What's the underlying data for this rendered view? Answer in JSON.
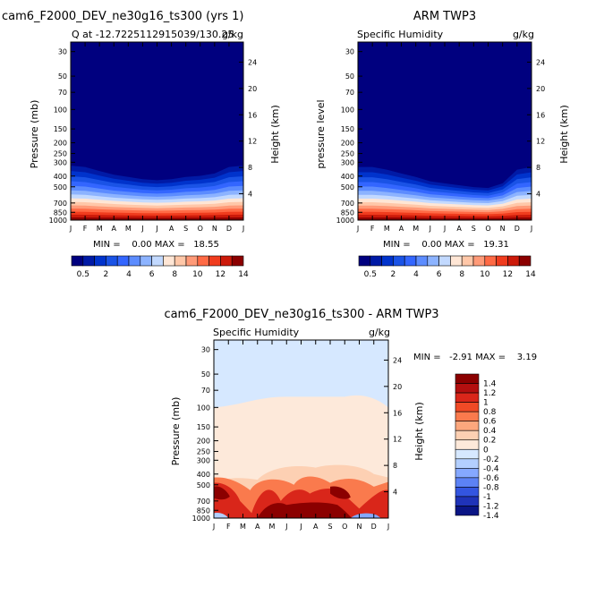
{
  "chart_data": [
    {
      "type": "heatmap",
      "title_left": "cam6_F2000_DEV_ne30g16_ts300 (yrs 1)",
      "subtitle": "Q at -12.7225112915039/130.25",
      "units": "g/kg",
      "ylabel": "Pressure (mb)",
      "ylabel_right": "Height (km)",
      "minmax": "MIN =    0.00 MAX =   18.55",
      "x_ticks": [
        "J",
        "F",
        "M",
        "A",
        "M",
        "J",
        "J",
        "A",
        "S",
        "O",
        "N",
        "D",
        "J"
      ],
      "p_ticks": [
        "30",
        "50",
        "70",
        "100",
        "150",
        "200",
        "250",
        "300",
        "400",
        "500",
        "700",
        "850",
        "1000"
      ],
      "km_ticks": [
        "24",
        "20",
        "16",
        "12",
        "8",
        "4"
      ],
      "moist_top_p": [
        290,
        300,
        330,
        360,
        380,
        400,
        410,
        400,
        380,
        370,
        350,
        300,
        290
      ],
      "colorbar_labels": [
        "0.5",
        "2",
        "4",
        "6",
        "8",
        "10",
        "12",
        "14"
      ]
    },
    {
      "type": "heatmap",
      "title_right": "ARM TWP3",
      "subtitle": "Specific Humidity",
      "units": "g/kg",
      "ylabel": "pressure level",
      "ylabel_right": "Height (km)",
      "minmax": "MIN =    0.00 MAX =   19.31",
      "x_ticks": [
        "J",
        "F",
        "M",
        "A",
        "M",
        "J",
        "J",
        "A",
        "S",
        "O",
        "N",
        "D",
        "J"
      ],
      "p_ticks": [
        "30",
        "50",
        "70",
        "100",
        "150",
        "200",
        "250",
        "300",
        "400",
        "500",
        "700",
        "850",
        "1000"
      ],
      "km_ticks": [
        "24",
        "20",
        "16",
        "12",
        "8",
        "4"
      ],
      "moist_top_p": [
        300,
        300,
        320,
        350,
        380,
        420,
        440,
        460,
        480,
        490,
        440,
        320,
        300
      ],
      "colorbar_labels": [
        "0.5",
        "2",
        "4",
        "6",
        "8",
        "10",
        "12",
        "14"
      ]
    },
    {
      "type": "heatmap",
      "title": "cam6_F2000_DEV_ne30g16_ts300 - ARM TWP3",
      "subtitle": "Specific Humidity",
      "units": "g/kg",
      "ylabel": "Pressure (mb)",
      "ylabel_right": "Height (km)",
      "minmax": "MIN =   -2.91 MAX =    3.19",
      "x_ticks": [
        "J",
        "F",
        "M",
        "A",
        "M",
        "J",
        "J",
        "A",
        "S",
        "O",
        "N",
        "D",
        "J"
      ],
      "p_ticks": [
        "30",
        "50",
        "70",
        "100",
        "150",
        "200",
        "250",
        "300",
        "400",
        "500",
        "700",
        "850",
        "1000"
      ],
      "km_ticks": [
        "24",
        "20",
        "16",
        "12",
        "8",
        "4"
      ],
      "colorbar_labels": [
        "1.4",
        "1.2",
        "1",
        "0.8",
        "0.6",
        "0.4",
        "0.2",
        "0",
        "-0.2",
        "-0.4",
        "-0.6",
        "-0.8",
        "-1",
        "-1.2",
        "-1.4"
      ]
    }
  ],
  "colors": {
    "moisture_scale": [
      "#00007f",
      "#001aa6",
      "#0033cc",
      "#1a53e6",
      "#3366ff",
      "#5c8cff",
      "#8cb3ff",
      "#c2d9ff",
      "#ffe6d5",
      "#ffc7a8",
      "#ff9a78",
      "#ff6a45",
      "#f03c1e",
      "#cc1a0a",
      "#8b0000"
    ],
    "diff_scale": [
      "#8b0000",
      "#b30f0f",
      "#d9261a",
      "#f04a26",
      "#fa7a4d",
      "#fca77d",
      "#fdd0b3",
      "#fde9da",
      "#d6e8ff",
      "#b3cfff",
      "#85a8ff",
      "#5c82f5",
      "#3355e0",
      "#1f33b8",
      "#0a1585"
    ]
  }
}
